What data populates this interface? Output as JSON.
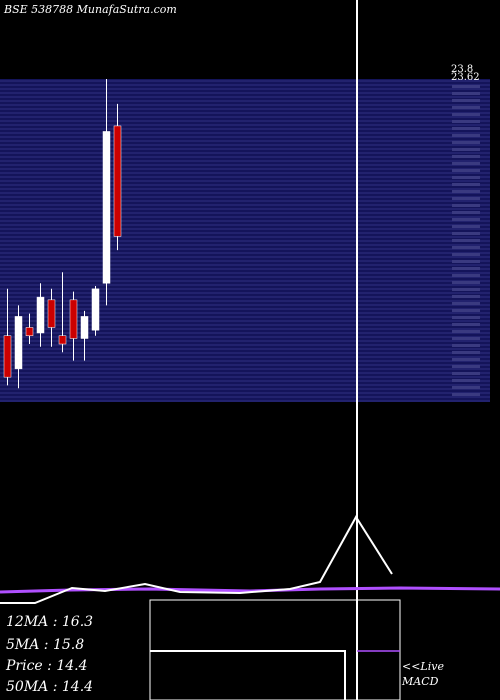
{
  "header": {
    "title": "BSE 538788  MunafaSutra.com"
  },
  "stats": {
    "ma12": "12MA : 16.3",
    "ma5": "5MA : 15.8",
    "price": "Price   : 14.4",
    "ma50": "50MA : 14.4"
  },
  "macd": {
    "line1": "<<Live",
    "line2": "MACD"
  },
  "colors": {
    "background": "#000000",
    "band": "#14145a",
    "grid": "#4a4aa8",
    "bull": "#ffffff",
    "bear": "#cc0000",
    "ma_line": "#b050ff",
    "indicator_line": "#ffffff"
  },
  "chart_data": {
    "type": "candlestick",
    "price_labels": [
      "23.8",
      "23.62"
    ],
    "candles": [
      {
        "open": 14.9,
        "high": 16.6,
        "low": 13.1,
        "close": 13.4
      },
      {
        "open": 13.7,
        "high": 16.0,
        "low": 13.0,
        "close": 15.6
      },
      {
        "open": 15.2,
        "high": 15.7,
        "low": 14.6,
        "close": 14.9
      },
      {
        "open": 15.0,
        "high": 16.8,
        "low": 14.5,
        "close": 16.3
      },
      {
        "open": 16.2,
        "high": 16.6,
        "low": 14.5,
        "close": 15.2
      },
      {
        "open": 14.9,
        "high": 17.2,
        "low": 14.3,
        "close": 14.6
      },
      {
        "open": 16.2,
        "high": 16.5,
        "low": 14.0,
        "close": 14.8
      },
      {
        "open": 14.8,
        "high": 15.8,
        "low": 14.0,
        "close": 15.6
      },
      {
        "open": 15.1,
        "high": 16.7,
        "low": 14.9,
        "close": 16.6
      },
      {
        "open": 16.8,
        "high": 24.2,
        "low": 16.0,
        "close": 22.3
      },
      {
        "open": 22.5,
        "high": 23.3,
        "low": 18.0,
        "close": 18.5
      }
    ]
  }
}
